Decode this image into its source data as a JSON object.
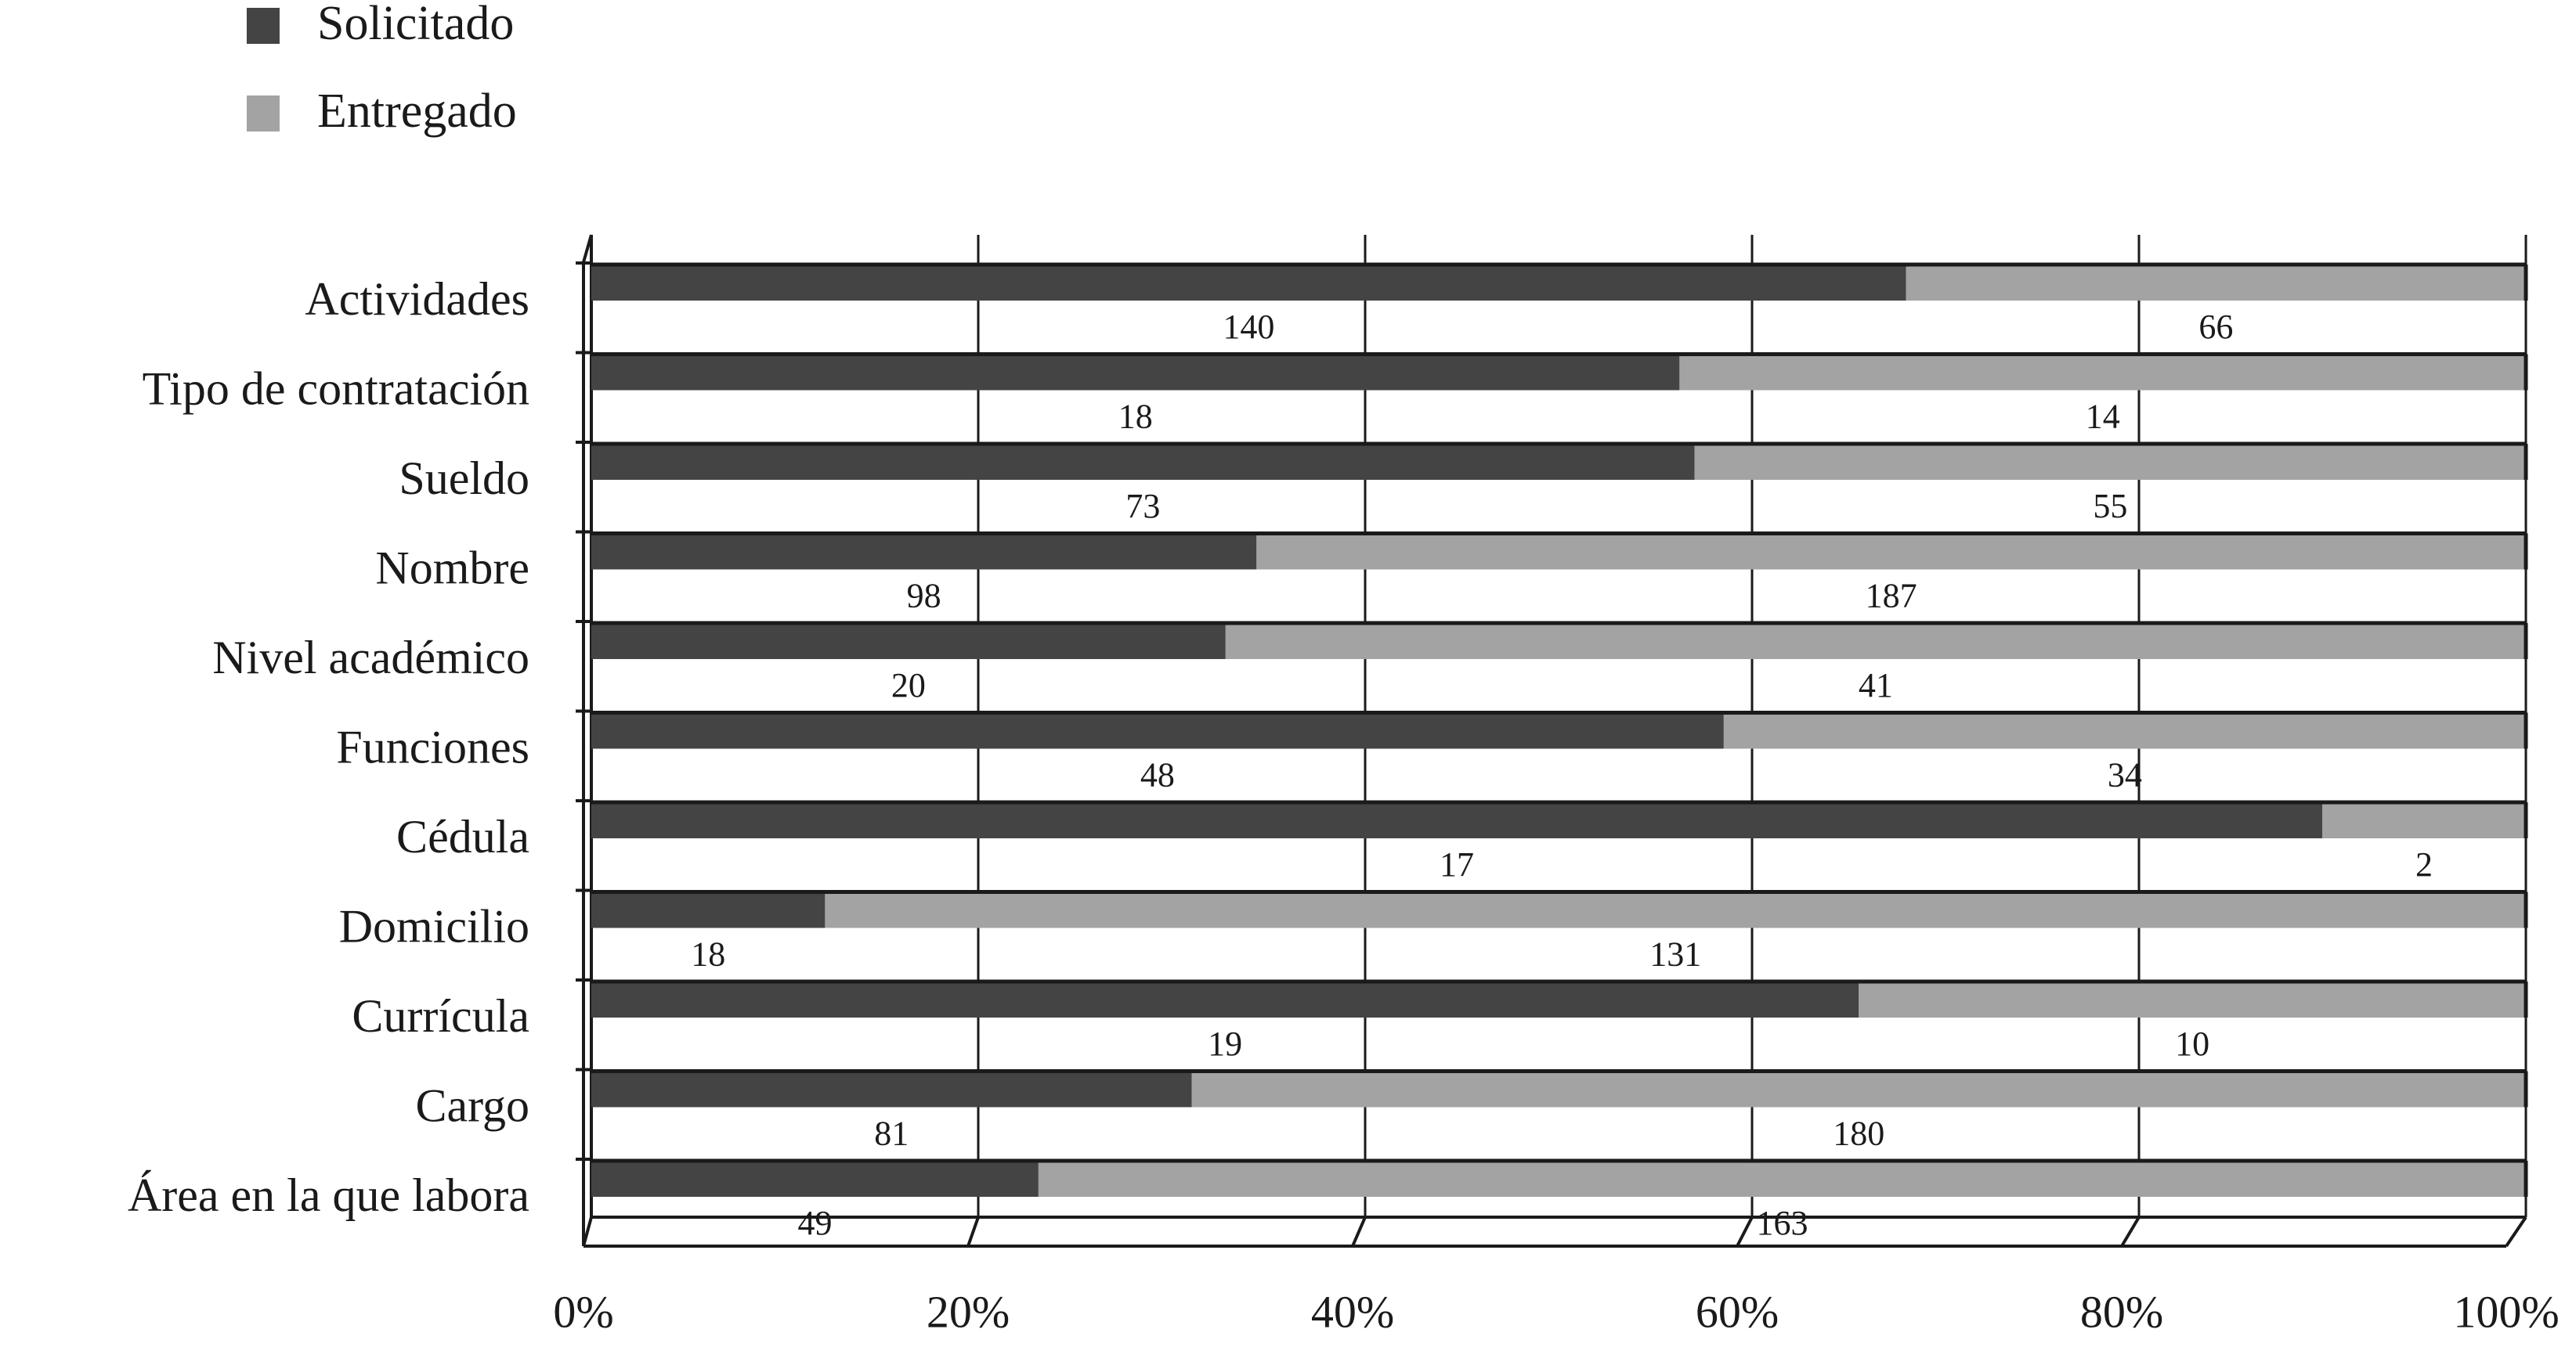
{
  "chart_data": {
    "type": "bar",
    "orientation": "horizontal",
    "stacked": "percent",
    "categories": [
      "Actividades",
      "Tipo de contratación",
      "Sueldo",
      "Nombre",
      "Nivel académico",
      "Funciones",
      "Cédula",
      "Domicilio",
      "Currícula",
      "Cargo",
      "Área en la que labora"
    ],
    "series": [
      {
        "name": "Solicitado",
        "color": "#444444",
        "values": [
          140,
          18,
          73,
          98,
          20,
          48,
          17,
          18,
          19,
          81,
          49
        ]
      },
      {
        "name": "Entregado",
        "color": "#a3a3a3",
        "values": [
          66,
          14,
          55,
          187,
          41,
          34,
          2,
          131,
          10,
          180,
          163
        ]
      }
    ],
    "xlim": [
      0,
      100
    ],
    "xticks": [
      {
        "value": 0,
        "label": "0%"
      },
      {
        "value": 20,
        "label": "20%"
      },
      {
        "value": 40,
        "label": "40%"
      },
      {
        "value": 60,
        "label": "60%"
      },
      {
        "value": 80,
        "label": "80%"
      },
      {
        "value": 100,
        "label": "100%"
      }
    ],
    "grid": true,
    "legend": "top-left"
  }
}
